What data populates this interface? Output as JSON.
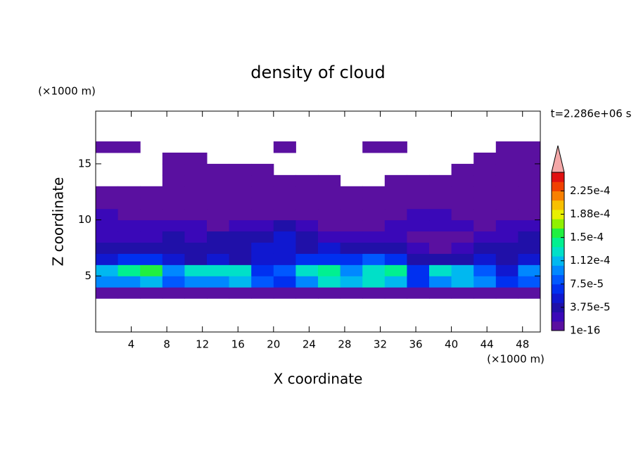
{
  "chart_data": {
    "type": "heatmap",
    "title": "density of cloud",
    "x_label": "X coordinate",
    "y_label": "Z coordinate",
    "x_unit": "(×1000 m)",
    "y_unit": "(×1000 m)",
    "time_label": "t=2.286e+06 s",
    "xlim": [
      0,
      50
    ],
    "ylim": [
      0,
      19.7
    ],
    "xticks": [
      4,
      8,
      12,
      16,
      20,
      24,
      28,
      32,
      36,
      40,
      44,
      48
    ],
    "yticks": [
      5,
      10,
      15
    ],
    "x": [
      1.25,
      3.75,
      6.25,
      8.75,
      11.25,
      13.75,
      16.25,
      18.75,
      21.25,
      23.75,
      26.25,
      28.75,
      31.25,
      33.75,
      36.25,
      38.75,
      41.25,
      43.75,
      46.25,
      48.75
    ],
    "y": [
      3.5,
      4.5,
      5.5,
      6.5,
      7.5,
      8.5,
      9.5,
      10.5,
      11.5,
      12.5,
      13.5,
      14.5,
      15.5,
      16.5
    ],
    "values": [
      [
        5e-06,
        5e-06,
        5e-06,
        5e-06,
        5e-06,
        5e-06,
        5e-06,
        5e-06,
        5e-06,
        5e-06,
        5e-06,
        5e-06,
        5e-06,
        5e-06,
        5e-06,
        5e-06,
        5e-06,
        5e-06,
        5e-06,
        5e-06
      ],
      [
        9e-05,
        0.0001,
        0.00011,
        8e-05,
        9e-05,
        0.0001,
        0.00011,
        8e-05,
        7e-05,
        0.0001,
        0.00012,
        0.00011,
        0.00012,
        0.00011,
        6e-05,
        0.0001,
        0.00011,
        9e-05,
        6e-05,
        8e-05
      ],
      [
        0.00011,
        0.00014,
        0.00016,
        0.0001,
        0.00012,
        0.00013,
        0.00012,
        7e-05,
        8e-05,
        0.00013,
        0.00014,
        9e-05,
        0.00013,
        0.00014,
        7e-05,
        0.00012,
        0.00011,
        8e-05,
        5e-05,
        9e-05
      ],
      [
        5e-05,
        6e-05,
        7e-05,
        5e-05,
        4e-05,
        5e-05,
        4e-05,
        5e-05,
        5e-05,
        6e-05,
        7e-05,
        6e-05,
        8e-05,
        6e-05,
        4e-05,
        3e-05,
        4e-05,
        5e-05,
        4e-05,
        5e-05
      ],
      [
        3e-05,
        3e-05,
        4e-05,
        3e-05,
        3e-05,
        4e-05,
        4e-05,
        5e-05,
        5e-05,
        4e-05,
        5e-05,
        4e-05,
        4e-05,
        3e-05,
        2e-05,
        5e-06,
        2e-05,
        3e-05,
        3e-05,
        3e-05
      ],
      [
        2e-05,
        2e-05,
        2e-05,
        3e-05,
        2e-05,
        3e-05,
        3e-05,
        4e-05,
        5e-05,
        3e-05,
        2e-05,
        2e-05,
        2e-05,
        2e-05,
        5e-06,
        5e-06,
        5e-06,
        2e-05,
        2e-05,
        3e-05
      ],
      [
        2e-05,
        2e-05,
        2e-05,
        2e-05,
        2e-05,
        5e-06,
        2e-05,
        2e-05,
        3e-05,
        2e-05,
        5e-06,
        5e-06,
        5e-06,
        2e-05,
        2e-05,
        2e-05,
        2e-05,
        5e-06,
        2e-05,
        2e-05
      ],
      [
        2e-05,
        5e-06,
        5e-06,
        5e-06,
        5e-06,
        5e-06,
        5e-06,
        5e-06,
        5e-06,
        5e-06,
        5e-06,
        5e-06,
        5e-06,
        5e-06,
        2e-05,
        2e-05,
        5e-06,
        5e-06,
        5e-06,
        5e-06
      ],
      [
        5e-06,
        5e-06,
        5e-06,
        5e-06,
        5e-06,
        5e-06,
        5e-06,
        5e-06,
        5e-06,
        5e-06,
        5e-06,
        5e-06,
        5e-06,
        5e-06,
        5e-06,
        5e-06,
        5e-06,
        5e-06,
        5e-06,
        5e-06
      ],
      [
        5e-06,
        5e-06,
        5e-06,
        5e-06,
        5e-06,
        5e-06,
        5e-06,
        5e-06,
        5e-06,
        5e-06,
        5e-06,
        5e-06,
        5e-06,
        5e-06,
        5e-06,
        5e-06,
        5e-06,
        5e-06,
        5e-06,
        5e-06
      ],
      [
        null,
        null,
        null,
        5e-06,
        5e-06,
        5e-06,
        5e-06,
        5e-06,
        5e-06,
        5e-06,
        5e-06,
        null,
        null,
        5e-06,
        5e-06,
        5e-06,
        5e-06,
        5e-06,
        5e-06,
        5e-06
      ],
      [
        null,
        null,
        null,
        5e-06,
        5e-06,
        5e-06,
        5e-06,
        5e-06,
        null,
        null,
        null,
        null,
        null,
        null,
        null,
        null,
        5e-06,
        5e-06,
        5e-06,
        5e-06
      ],
      [
        null,
        null,
        null,
        5e-06,
        5e-06,
        null,
        null,
        null,
        null,
        null,
        null,
        null,
        null,
        null,
        null,
        null,
        null,
        5e-06,
        5e-06,
        5e-06
      ],
      [
        5e-06,
        5e-06,
        null,
        null,
        null,
        null,
        null,
        null,
        5e-06,
        null,
        null,
        null,
        5e-06,
        5e-06,
        null,
        null,
        null,
        null,
        5e-06,
        5e-06
      ]
    ],
    "levels": [
      1e-16,
      1.5e-05,
      3e-05,
      4.5e-05,
      6e-05,
      7.5e-05,
      9e-05,
      0.000105,
      0.00012,
      0.000135,
      0.00015,
      0.000165,
      0.00018,
      0.000195,
      0.00021,
      0.000225,
      0.00024,
      0.000255
    ],
    "colors": [
      "#5a10a0",
      "#3a08b8",
      "#2010a8",
      "#1018d0",
      "#0030f0",
      "#0058ff",
      "#0088ff",
      "#00b8f0",
      "#00e0c8",
      "#00f090",
      "#20f040",
      "#90f000",
      "#e8f000",
      "#f8c000",
      "#f88000",
      "#f04000",
      "#e01010"
    ],
    "extend_color": "#f4a8a8",
    "cticks": [
      1e-16,
      {
        "value": 3.75e-05,
        "label": "3.75e-5"
      },
      {
        "value": 7.5e-05,
        "label": "7.5e-5"
      },
      {
        "value": 0.0001125,
        "label": "1.12e-4"
      },
      {
        "value": 0.00015,
        "label": "1.5e-4"
      },
      {
        "value": 0.0001875,
        "label": "1.88e-4"
      },
      {
        "value": 0.000225,
        "label": "2.25e-4"
      }
    ]
  }
}
